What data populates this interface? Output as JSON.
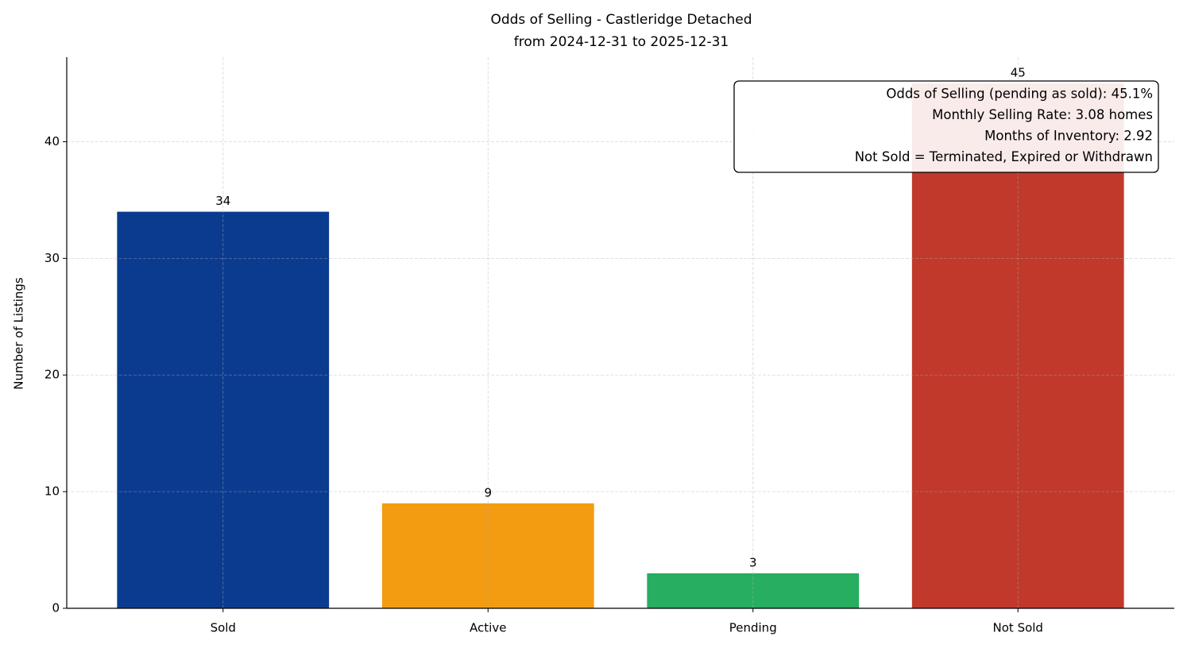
{
  "chart_data": {
    "type": "bar",
    "title": "Odds of Selling - Castleridge Detached",
    "subtitle": "from 2024-12-31 to 2025-12-31",
    "ylabel": "Number of Listings",
    "categories": [
      "Sold",
      "Active",
      "Pending",
      "Not Sold"
    ],
    "values": [
      34,
      9,
      3,
      45
    ],
    "colors": [
      "#0b3b8f",
      "#f39c12",
      "#27ae60",
      "#c0392b"
    ],
    "ylim": [
      0,
      47.25
    ],
    "yticks": [
      0,
      10,
      20,
      30,
      40
    ],
    "grid": true,
    "annotations": [
      "Odds of Selling (pending as sold): 45.1%",
      "Monthly Selling Rate: 3.08 homes",
      "Months of Inventory: 2.92",
      "Not Sold = Terminated, Expired or Withdrawn"
    ]
  }
}
